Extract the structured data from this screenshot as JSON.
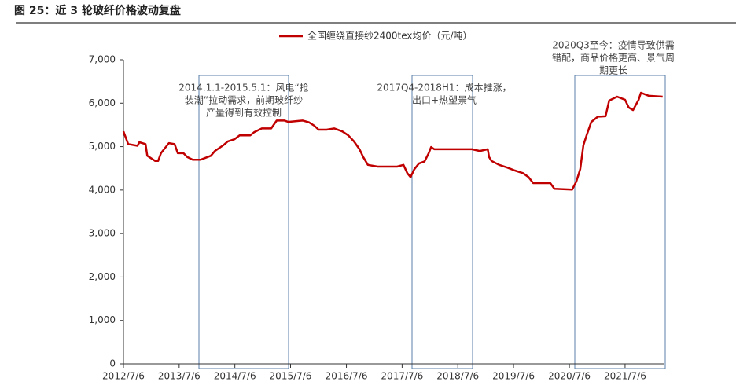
{
  "chart_data": {
    "type": "line",
    "title": "图 25：近 3 轮玻纤价格波动复盘",
    "annotations": [
      {
        "lines": [
          "2014.1.1-2015.5.1：风电“抢",
          "装潮”拉动需求，前期玻纤纱",
          "产量得到有效控制"
        ]
      },
      {
        "lines": [
          "2017Q4-2018H1：成本推涨，",
          "出口+热塑景气"
        ]
      },
      {
        "lines": [
          "2020Q3至今：疫情导致供需",
          "错配，商品价格更高、景气周",
          "期更长"
        ]
      }
    ],
    "legend": "top",
    "x": [
      "2012/7/6",
      "2012/8/6",
      "2012/10/6",
      "2012/10/18",
      "2012/11/28",
      "2012/12/9",
      "2013/1/30",
      "2013/2/18",
      "2013/3/9",
      "2013/4/30",
      "2013/6/6",
      "2013/6/27",
      "2013/8/3",
      "2013/8/28",
      "2013/10/3",
      "2013/11/24",
      "2014/1/30",
      "2014/2/25",
      "2014/4/21",
      "2014/5/21",
      "2014/7/3",
      "2014/8/6",
      "2014/10/15",
      "2014/11/9",
      "2014/12/30",
      "2015/3/1",
      "2015/4/6",
      "2015/5/27",
      "2015/6/21",
      "2015/9/24",
      "2015/11/3",
      "2015/12/9",
      "2016/1/6",
      "2016/2/27",
      "2016/4/18",
      "2016/6/9",
      "2016/7/18",
      "2016/8/24",
      "2016/9/30",
      "2016/10/24",
      "2016/11/24",
      "2017/1/27",
      "2017/6/3",
      "2017/7/15",
      "2017/8/9",
      "2017/8/30",
      "2017/9/24",
      "2017/10/24",
      "2017/11/30",
      "2017/12/27",
      "2018/1/12",
      "2018/2/2",
      "2018/3/12",
      "2018/10/6",
      "2018/11/27",
      "2019/1/18",
      "2019/1/27",
      "2019/2/12",
      "2019/4/3",
      "2019/5/24",
      "2019/7/15",
      "2019/9/6",
      "2019/10/12",
      "2019/11/12",
      "2020/3/3",
      "2020/3/30",
      "2020/7/24",
      "2020/8/21",
      "2020/9/15",
      "2020/10/6",
      "2020/10/27",
      "2020/11/27",
      "2021/1/9",
      "2021/2/28",
      "2021/3/24",
      "2021/5/15",
      "2021/7/6",
      "2021/7/30",
      "2021/8/27",
      "2021/10/3",
      "2021/10/18",
      "2021/12/9",
      "2022/3/9"
    ],
    "series": [
      {
        "name": "全国缠绕直接纱2400tex均价（元/吨）",
        "color": "#c00000",
        "values": [
          5350,
          5060,
          5020,
          5100,
          5060,
          4790,
          4670,
          4670,
          4850,
          5080,
          5060,
          4850,
          4850,
          4760,
          4700,
          4700,
          4790,
          4900,
          5030,
          5120,
          5170,
          5260,
          5260,
          5330,
          5420,
          5420,
          5600,
          5600,
          5570,
          5600,
          5560,
          5480,
          5390,
          5390,
          5420,
          5350,
          5260,
          5120,
          4940,
          4760,
          4580,
          4540,
          4540,
          4580,
          4390,
          4300,
          4480,
          4610,
          4660,
          4850,
          4990,
          4940,
          4940,
          4940,
          4900,
          4940,
          4760,
          4670,
          4580,
          4520,
          4450,
          4390,
          4300,
          4160,
          4160,
          4030,
          4010,
          4200,
          4480,
          5030,
          5260,
          5570,
          5690,
          5700,
          6060,
          6150,
          6080,
          5900,
          5840,
          6080,
          6240,
          6170,
          6150
        ]
      }
    ],
    "xlim": [
      "2012/7/6",
      "2022/3/21"
    ],
    "xticks": [
      "2012/7/6",
      "2013/7/6",
      "2014/7/6",
      "2015/7/6",
      "2016/7/6",
      "2017/7/6",
      "2018/7/6",
      "2019/7/6",
      "2020/7/6",
      "2021/7/6"
    ],
    "ylim": [
      0,
      7000
    ],
    "yticks": [
      0,
      {
        "value": 1000,
        "label": "1,000"
      },
      {
        "value": 2000,
        "label": "2,000"
      },
      {
        "value": 3000,
        "label": "3,000"
      },
      {
        "value": 4000,
        "label": "4,000"
      },
      {
        "value": 5000,
        "label": "5,000"
      },
      {
        "value": 6000,
        "label": "6,000"
      },
      {
        "value": 7000,
        "label": "7,000"
      }
    ],
    "grid": false
  }
}
